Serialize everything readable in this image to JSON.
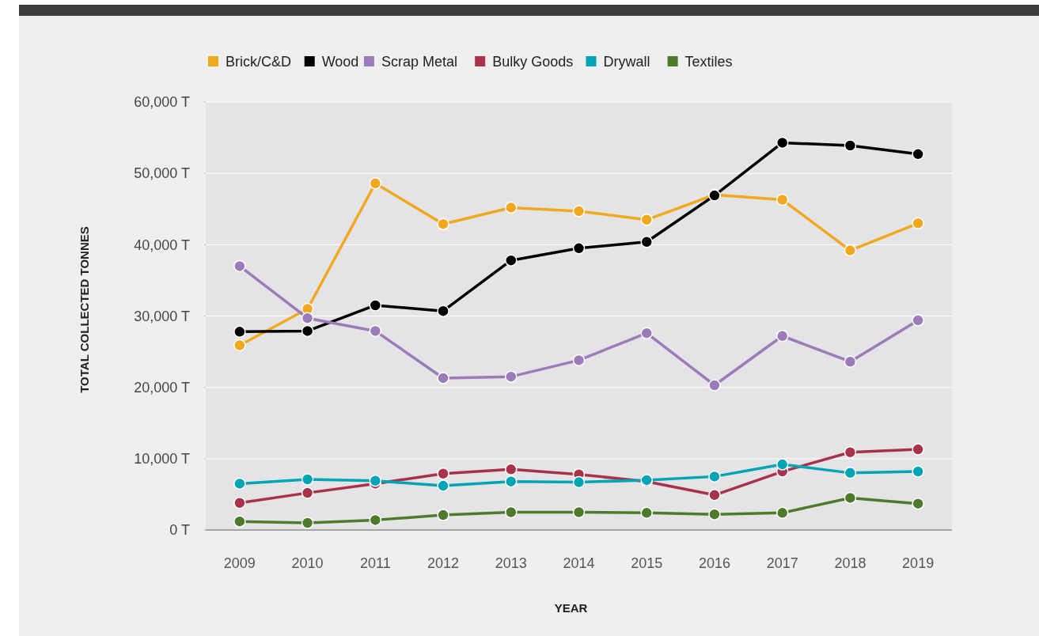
{
  "chart_data": {
    "type": "line",
    "xlabel": "YEAR",
    "ylabel": "TOTAL COLLECTED TONNES",
    "categories": [
      "2009",
      "2010",
      "2011",
      "2012",
      "2013",
      "2014",
      "2015",
      "2016",
      "2017",
      "2018",
      "2019"
    ],
    "series": [
      {
        "name": "Brick/C&D",
        "color": "#f0a81e",
        "values": [
          25900,
          31000,
          48600,
          42900,
          45200,
          44700,
          43500,
          47000,
          46300,
          39200,
          43000
        ]
      },
      {
        "name": "Wood",
        "color": "#000000",
        "values": [
          27800,
          27900,
          31500,
          30700,
          37800,
          39500,
          40400,
          46900,
          54300,
          53900,
          52700
        ]
      },
      {
        "name": "Scrap Metal",
        "color": "#9b7bb8",
        "values": [
          37000,
          29700,
          27900,
          21300,
          21500,
          23800,
          27600,
          20300,
          27200,
          23600,
          29400
        ]
      },
      {
        "name": "Bulky Goods",
        "color": "#a8324a",
        "values": [
          3800,
          5200,
          6500,
          7900,
          8500,
          7800,
          6800,
          4900,
          8200,
          10900,
          11300
        ]
      },
      {
        "name": "Drywall",
        "color": "#00a5b5",
        "values": [
          6500,
          7100,
          6900,
          6200,
          6800,
          6700,
          7000,
          7500,
          9200,
          8000,
          8200
        ]
      },
      {
        "name": "Textiles",
        "color": "#4e7a2b",
        "values": [
          1200,
          1000,
          1400,
          2100,
          2500,
          2500,
          2400,
          2200,
          2400,
          4500,
          3700
        ]
      }
    ],
    "ylim": [
      0,
      60000
    ],
    "yticks": [
      {
        "value": 0,
        "label": "0 T"
      },
      {
        "value": 10000,
        "label": "10,000 T"
      },
      {
        "value": 20000,
        "label": "20,000 T"
      },
      {
        "value": 30000,
        "label": "30,000 T"
      },
      {
        "value": 40000,
        "label": "40,000 T"
      },
      {
        "value": 50000,
        "label": "50,000 T"
      },
      {
        "value": 60000,
        "label": "60,000 T"
      }
    ],
    "grid": "y",
    "legend": "top left",
    "marker": "circle",
    "line_style": "solid"
  }
}
